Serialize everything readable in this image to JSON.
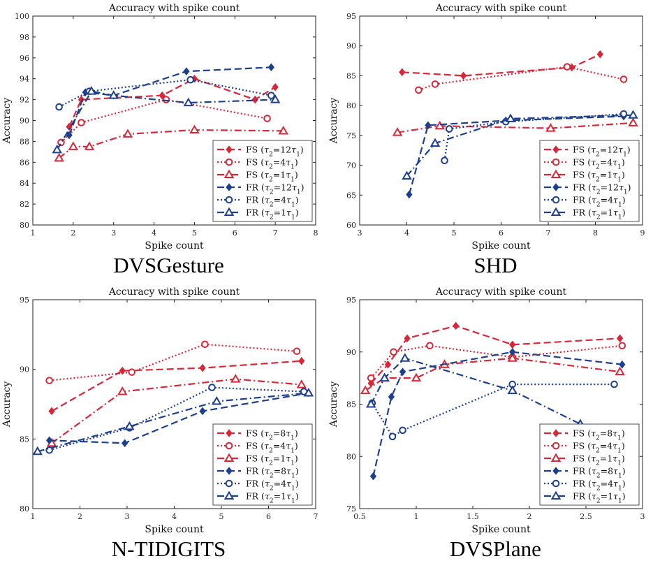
{
  "colors": {
    "fs": "#d62839",
    "fr": "#1d3f8c"
  },
  "chart_data": [
    {
      "type": "line",
      "dataset_name": "DVSGesture",
      "title": "Accuracy with spike count",
      "xlabel": "Spike count",
      "ylabel": "Accuracy",
      "xlim": [
        1,
        8
      ],
      "ylim": [
        80,
        100
      ],
      "xticks": [
        1,
        2,
        3,
        4,
        5,
        6,
        7,
        8
      ],
      "yticks": [
        80,
        82,
        84,
        86,
        88,
        90,
        92,
        94,
        96,
        98,
        100
      ],
      "legend_position": "bottom-right",
      "series": [
        {
          "family": "FS",
          "tau": "12",
          "marker": "diamond",
          "dash": "dashed",
          "x": [
            1.9,
            2.2,
            4.2,
            5.0,
            6.5,
            7.0
          ],
          "y": [
            89.4,
            92.0,
            92.4,
            94.0,
            92.0,
            93.2
          ]
        },
        {
          "family": "FS",
          "tau": "4",
          "marker": "circle",
          "dash": "dotted",
          "x": [
            1.7,
            2.2,
            4.3,
            6.8
          ],
          "y": [
            87.9,
            89.8,
            92.0,
            90.2
          ]
        },
        {
          "family": "FS",
          "tau": "1",
          "marker": "triangle",
          "dash": "dashdot",
          "x": [
            1.65,
            2.0,
            2.4,
            3.35,
            5.0,
            7.2
          ],
          "y": [
            86.4,
            87.5,
            87.5,
            88.7,
            89.1,
            89.0
          ]
        },
        {
          "family": "FR",
          "tau": "12",
          "marker": "diamond",
          "dash": "dashed",
          "x": [
            1.9,
            2.3,
            3.0,
            4.8,
            6.9
          ],
          "y": [
            88.6,
            92.7,
            92.4,
            94.7,
            95.1
          ]
        },
        {
          "family": "FR",
          "tau": "4",
          "marker": "circle",
          "dash": "dotted",
          "x": [
            1.65,
            2.4,
            4.9,
            6.9
          ],
          "y": [
            91.3,
            92.8,
            93.9,
            92.4
          ]
        },
        {
          "family": "FR",
          "tau": "1",
          "marker": "triangle",
          "dash": "dashdot",
          "x": [
            1.6,
            2.45,
            3.0,
            4.85,
            7.0
          ],
          "y": [
            87.2,
            92.8,
            92.4,
            91.7,
            92.0
          ]
        }
      ]
    },
    {
      "type": "line",
      "dataset_name": "SHD",
      "title": "Accuracy with spike count",
      "xlabel": "Spike count",
      "ylabel": "Accuracy",
      "xlim": [
        3,
        9
      ],
      "ylim": [
        60,
        95
      ],
      "xticks": [
        3,
        4,
        5,
        6,
        7,
        8,
        9
      ],
      "yticks": [
        60,
        65,
        70,
        75,
        80,
        85,
        90,
        95
      ],
      "legend_position": "bottom-right",
      "series": [
        {
          "family": "FS",
          "tau": "12",
          "marker": "diamond",
          "dash": "dashed",
          "x": [
            3.9,
            5.2,
            7.5,
            8.1
          ],
          "y": [
            85.6,
            85.0,
            86.4,
            88.6
          ]
        },
        {
          "family": "FS",
          "tau": "4",
          "marker": "circle",
          "dash": "dotted",
          "x": [
            4.25,
            4.6,
            7.4,
            8.6
          ],
          "y": [
            82.6,
            83.6,
            86.5,
            84.4
          ]
        },
        {
          "family": "FS",
          "tau": "1",
          "marker": "triangle",
          "dash": "dashdot",
          "x": [
            3.8,
            4.7,
            7.05,
            8.8
          ],
          "y": [
            75.5,
            76.6,
            76.2,
            77.1
          ]
        },
        {
          "family": "FR",
          "tau": "12",
          "marker": "diamond",
          "dash": "dashed",
          "x": [
            4.05,
            4.45,
            6.1,
            8.6
          ],
          "y": [
            65.1,
            76.7,
            77.5,
            78.2
          ]
        },
        {
          "family": "FR",
          "tau": "4",
          "marker": "circle",
          "dash": "dotted",
          "x": [
            4.8,
            4.9,
            6.1,
            8.6
          ],
          "y": [
            70.8,
            76.1,
            77.3,
            78.6
          ]
        },
        {
          "family": "FR",
          "tau": "1",
          "marker": "triangle",
          "dash": "dashdot",
          "x": [
            4.0,
            4.6,
            6.2,
            8.8
          ],
          "y": [
            68.2,
            73.7,
            77.8,
            78.4
          ]
        }
      ]
    },
    {
      "type": "line",
      "dataset_name": "N-TIDIGITS",
      "title": "Accuracy with spike count",
      "xlabel": "Spike count",
      "ylabel": "Accuracy",
      "xlim": [
        1,
        7
      ],
      "ylim": [
        80,
        95
      ],
      "xticks": [
        1,
        2,
        3,
        4,
        5,
        6,
        7
      ],
      "yticks": [
        80,
        85,
        90,
        95
      ],
      "legend_position": "bottom-right",
      "series": [
        {
          "family": "FS",
          "tau": "8",
          "marker": "diamond",
          "dash": "dashed",
          "x": [
            1.4,
            2.9,
            4.6,
            6.7
          ],
          "y": [
            87.0,
            89.9,
            90.1,
            90.6
          ]
        },
        {
          "family": "FS",
          "tau": "4",
          "marker": "circle",
          "dash": "dotted",
          "x": [
            1.35,
            3.1,
            4.65,
            6.6
          ],
          "y": [
            89.2,
            89.8,
            91.8,
            91.3
          ]
        },
        {
          "family": "FS",
          "tau": "1",
          "marker": "triangle",
          "dash": "dashdot",
          "x": [
            1.4,
            2.9,
            5.3,
            6.7
          ],
          "y": [
            84.7,
            88.4,
            89.3,
            88.9
          ]
        },
        {
          "family": "FR",
          "tau": "8",
          "marker": "diamond",
          "dash": "dashed",
          "x": [
            1.35,
            2.95,
            4.6,
            6.85
          ],
          "y": [
            84.9,
            84.7,
            87.0,
            88.3
          ]
        },
        {
          "family": "FR",
          "tau": "4",
          "marker": "circle",
          "dash": "dotted",
          "x": [
            1.35,
            3.05,
            4.8,
            6.75
          ],
          "y": [
            84.2,
            85.8,
            88.7,
            88.4
          ]
        },
        {
          "family": "FR",
          "tau": "1",
          "marker": "triangle",
          "dash": "dashdot",
          "x": [
            1.1,
            3.05,
            4.9,
            6.85
          ],
          "y": [
            84.1,
            85.9,
            87.7,
            88.3
          ]
        }
      ]
    },
    {
      "type": "line",
      "dataset_name": "DVSPlane",
      "title": "Accuracy with spike count",
      "xlabel": "Spike count",
      "ylabel": "Accuracy",
      "xlim": [
        0.5,
        3
      ],
      "ylim": [
        75,
        95
      ],
      "xticks": [
        0.5,
        1,
        1.5,
        2,
        2.5,
        3
      ],
      "yticks": [
        75,
        80,
        85,
        90,
        95
      ],
      "legend_position": "bottom-right",
      "series": [
        {
          "family": "FS",
          "tau": "8",
          "marker": "diamond",
          "dash": "dashed",
          "x": [
            0.6,
            0.75,
            0.92,
            1.35,
            1.85,
            2.8
          ],
          "y": [
            87.0,
            88.8,
            91.3,
            92.5,
            90.7,
            91.3
          ]
        },
        {
          "family": "FS",
          "tau": "4",
          "marker": "circle",
          "dash": "dotted",
          "x": [
            0.6,
            0.8,
            1.12,
            1.85,
            2.82
          ],
          "y": [
            87.5,
            90.0,
            90.6,
            89.5,
            90.6
          ]
        },
        {
          "family": "FS",
          "tau": "1",
          "marker": "triangle",
          "dash": "dashdot",
          "x": [
            0.55,
            0.72,
            1.0,
            1.25,
            1.85,
            2.8
          ],
          "y": [
            86.3,
            87.5,
            87.5,
            88.8,
            89.4,
            88.1
          ]
        },
        {
          "family": "FR",
          "tau": "8",
          "marker": "diamond",
          "dash": "dashed",
          "x": [
            0.62,
            0.78,
            0.88,
            1.85,
            2.82
          ],
          "y": [
            78.1,
            85.7,
            88.1,
            90.0,
            88.8
          ]
        },
        {
          "family": "FR",
          "tau": "4",
          "marker": "circle",
          "dash": "dotted",
          "x": [
            0.61,
            0.79,
            0.88,
            1.85,
            2.75
          ],
          "y": [
            85.1,
            81.9,
            82.5,
            86.9,
            86.9
          ]
        },
        {
          "family": "FR",
          "tau": "1",
          "marker": "triangle",
          "dash": "dashdot",
          "x": [
            0.6,
            0.72,
            0.9,
            1.85,
            2.45
          ],
          "y": [
            85.0,
            87.5,
            89.4,
            86.3,
            83.1
          ]
        }
      ]
    }
  ]
}
